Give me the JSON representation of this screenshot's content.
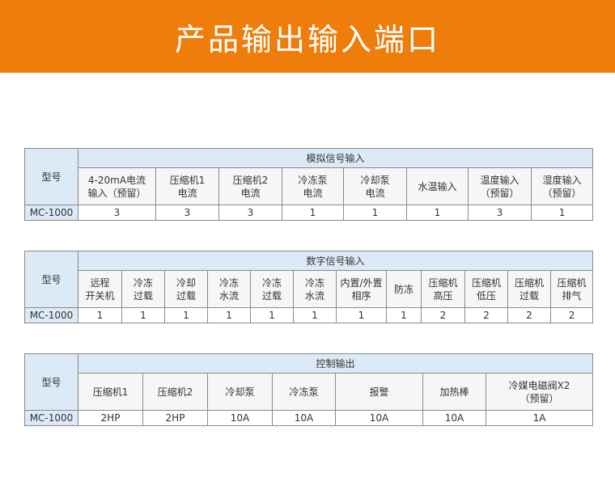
{
  "title": "产品输出输入端口",
  "accent_color": "#ef7d0b",
  "tables": [
    {
      "model_header": "型号",
      "group": "模拟信号输入",
      "columns": [
        "4-20mA电流\n输入（预留）",
        "压缩机1\n电流",
        "压缩机2\n电流",
        "冷冻泵\n电流",
        "冷却泵\n电流",
        "水温输入",
        "温度输入\n（预留）",
        "湿度输入\n（预留）"
      ],
      "model": "MC-1000",
      "values": [
        "3",
        "3",
        "3",
        "1",
        "1",
        "1",
        "3",
        "1"
      ]
    },
    {
      "model_header": "型号",
      "group": "数字信号输入",
      "columns": [
        "远程\n开关机",
        "冷冻\n过载",
        "冷却\n过载",
        "冷冻\n水流",
        "冷冻\n过载",
        "冷冻\n水流",
        "内置/外置\n相序",
        "防冻",
        "压缩机\n高压",
        "压缩机\n低压",
        "压缩机\n过载",
        "压缩机\n排气"
      ],
      "model": "MC-1000",
      "values": [
        "1",
        "1",
        "1",
        "1",
        "1",
        "1",
        "1",
        "1",
        "2",
        "2",
        "2",
        "2"
      ]
    },
    {
      "model_header": "型号",
      "group": "控制输出",
      "columns": [
        "压缩机1",
        "压缩机2",
        "冷却泵",
        "冷冻泵",
        "报警",
        "加热棒",
        "冷媒电磁阀X2\n（预留）"
      ],
      "model": "MC-1000",
      "values": [
        "2HP",
        "2HP",
        "10A",
        "10A",
        "10A",
        "10A",
        "1A"
      ]
    }
  ]
}
